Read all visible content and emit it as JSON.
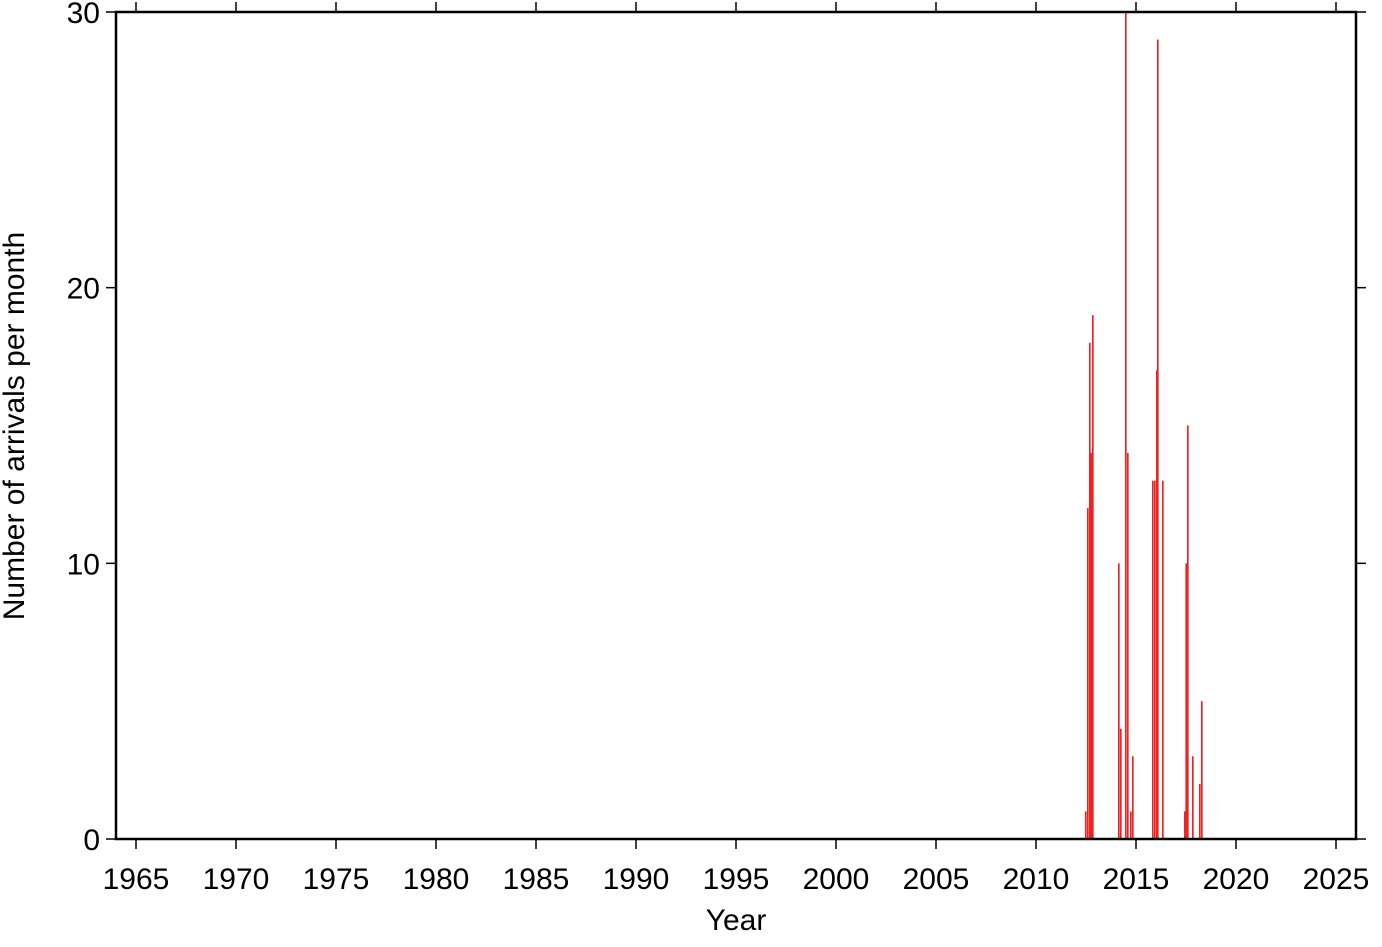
{
  "chart_data": {
    "type": "bar",
    "color": "#ee2222",
    "xlabel": "Year",
    "ylabel": "Number of arrivals per month",
    "x": [
      2012.45,
      2012.55,
      2012.65,
      2012.72,
      2012.8,
      2014.1,
      2014.2,
      2014.45,
      2014.55,
      2014.7,
      2014.8,
      2015.8,
      2015.9,
      2016.0,
      2016.05,
      2016.3,
      2017.4,
      2017.47,
      2017.55,
      2017.8,
      2018.15,
      2018.25
    ],
    "values": [
      1,
      12,
      18,
      14,
      19,
      10,
      4,
      30,
      14,
      1,
      3,
      13,
      13,
      17,
      29,
      13,
      1,
      10,
      15,
      3,
      2,
      5
    ],
    "bar_width": 0.0833,
    "xlim": [
      1964,
      2026
    ],
    "xticks": [
      1965,
      1970,
      1975,
      1980,
      1985,
      1990,
      1995,
      2000,
      2005,
      2010,
      2015,
      2020,
      2025
    ],
    "ylim": [
      0,
      30
    ],
    "yticks": [
      0,
      10,
      20,
      30
    ]
  }
}
